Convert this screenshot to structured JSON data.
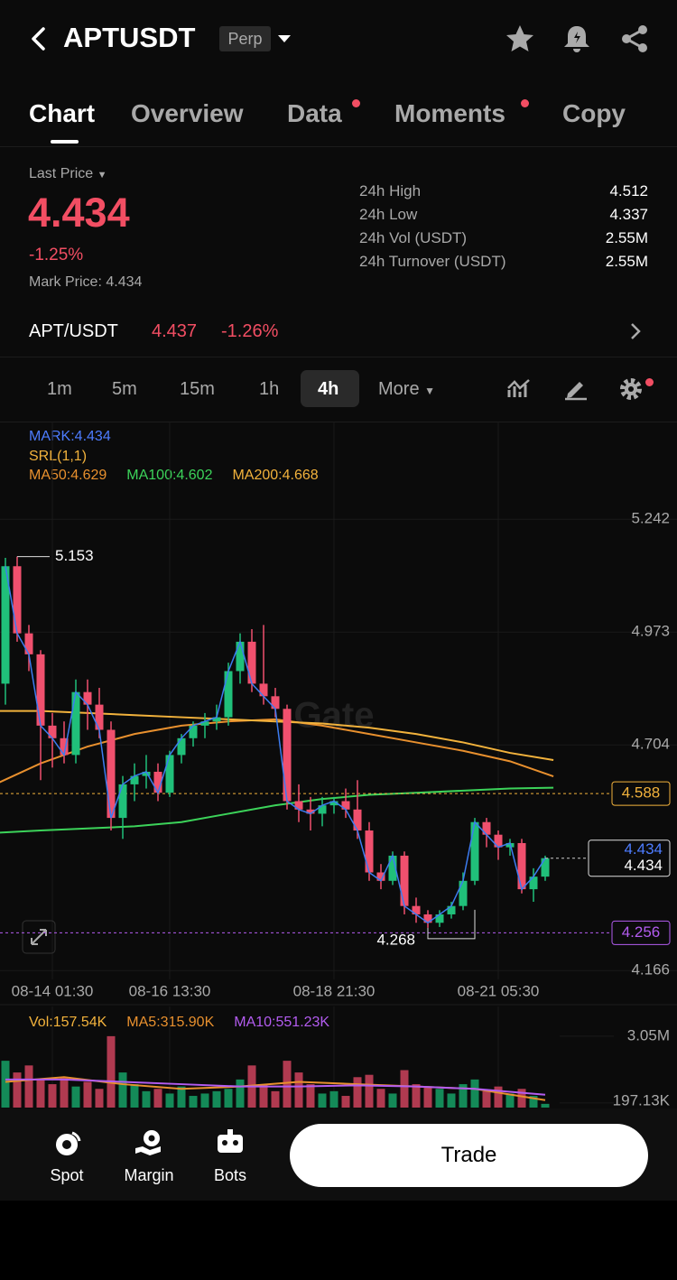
{
  "header": {
    "symbol": "APTUSDT",
    "badge": "Perp"
  },
  "tabs": [
    "Chart",
    "Overview",
    "Data",
    "Moments",
    "Copy"
  ],
  "price": {
    "last_label": "Last Price",
    "last": "4.434",
    "change": "-1.25%",
    "mark_label": "Mark Price:",
    "mark": "4.434"
  },
  "stats": [
    {
      "label": "24h High",
      "value": "4.512"
    },
    {
      "label": "24h Low",
      "value": "4.337"
    },
    {
      "label": "24h Vol (USDT)",
      "value": "2.55M"
    },
    {
      "label": "24h Turnover (USDT)",
      "value": "2.55M"
    }
  ],
  "pair": {
    "name": "APT/USDT",
    "price": "4.437",
    "change": "-1.26%"
  },
  "intervals": [
    "1m",
    "5m",
    "15m",
    "1h",
    "4h",
    "More"
  ],
  "chart": {
    "legend": {
      "mark": "MARK:4.434",
      "srl": "SRL(1,1)"
    },
    "watermark": "Gate",
    "ylim": [
      4.145,
      5.264
    ],
    "yticks": [
      5.242,
      4.973,
      4.704,
      4.166
    ],
    "times": [
      null,
      null,
      null,
      null,
      "08-14 01:30",
      null,
      null,
      null,
      null,
      null,
      null,
      null,
      null,
      null,
      "08-16 13:30",
      null,
      null,
      null,
      null,
      null,
      null,
      null,
      null,
      null,
      null,
      null,
      null,
      null,
      "08-18 21:30",
      null,
      null,
      null,
      null,
      null,
      null,
      null,
      null,
      null,
      null,
      null,
      null,
      null,
      "08-21 05:30",
      null,
      null,
      null,
      null
    ],
    "candles": [
      {
        "o": 4.85,
        "h": 5.15,
        "l": 4.8,
        "c": 5.13
      },
      {
        "o": 5.13,
        "h": 5.153,
        "l": 4.95,
        "c": 4.97
      },
      {
        "o": 4.97,
        "h": 4.99,
        "l": 4.88,
        "c": 4.92
      },
      {
        "o": 4.92,
        "h": 4.93,
        "l": 4.62,
        "c": 4.75
      },
      {
        "o": 4.75,
        "h": 4.78,
        "l": 4.65,
        "c": 4.72
      },
      {
        "o": 4.72,
        "h": 4.76,
        "l": 4.66,
        "c": 4.68
      },
      {
        "o": 4.68,
        "h": 4.86,
        "l": 4.66,
        "c": 4.83
      },
      {
        "o": 4.83,
        "h": 4.86,
        "l": 4.74,
        "c": 4.8
      },
      {
        "o": 4.8,
        "h": 4.84,
        "l": 4.72,
        "c": 4.74
      },
      {
        "o": 4.74,
        "h": 4.76,
        "l": 4.5,
        "c": 4.53
      },
      {
        "o": 4.53,
        "h": 4.63,
        "l": 4.48,
        "c": 4.61
      },
      {
        "o": 4.61,
        "h": 4.66,
        "l": 4.57,
        "c": 4.63
      },
      {
        "o": 4.63,
        "h": 4.68,
        "l": 4.6,
        "c": 4.64
      },
      {
        "o": 4.64,
        "h": 4.66,
        "l": 4.57,
        "c": 4.59
      },
      {
        "o": 4.59,
        "h": 4.69,
        "l": 4.58,
        "c": 4.68
      },
      {
        "o": 4.68,
        "h": 4.73,
        "l": 4.66,
        "c": 4.72
      },
      {
        "o": 4.72,
        "h": 4.76,
        "l": 4.7,
        "c": 4.75
      },
      {
        "o": 4.75,
        "h": 4.78,
        "l": 4.72,
        "c": 4.76
      },
      {
        "o": 4.76,
        "h": 4.8,
        "l": 4.74,
        "c": 4.77
      },
      {
        "o": 4.77,
        "h": 4.9,
        "l": 4.75,
        "c": 4.88
      },
      {
        "o": 4.88,
        "h": 4.97,
        "l": 4.85,
        "c": 4.95
      },
      {
        "o": 4.95,
        "h": 4.98,
        "l": 4.83,
        "c": 4.85
      },
      {
        "o": 4.85,
        "h": 4.99,
        "l": 4.8,
        "c": 4.82
      },
      {
        "o": 4.82,
        "h": 4.84,
        "l": 4.77,
        "c": 4.79
      },
      {
        "o": 4.79,
        "h": 4.8,
        "l": 4.55,
        "c": 4.57
      },
      {
        "o": 4.57,
        "h": 4.61,
        "l": 4.52,
        "c": 4.55
      },
      {
        "o": 4.55,
        "h": 4.58,
        "l": 4.5,
        "c": 4.54
      },
      {
        "o": 4.54,
        "h": 4.58,
        "l": 4.51,
        "c": 4.56
      },
      {
        "o": 4.56,
        "h": 4.58,
        "l": 4.54,
        "c": 4.57
      },
      {
        "o": 4.57,
        "h": 4.6,
        "l": 4.53,
        "c": 4.55
      },
      {
        "o": 4.55,
        "h": 4.62,
        "l": 4.48,
        "c": 4.5
      },
      {
        "o": 4.5,
        "h": 4.52,
        "l": 4.38,
        "c": 4.4
      },
      {
        "o": 4.4,
        "h": 4.42,
        "l": 4.36,
        "c": 4.38
      },
      {
        "o": 4.38,
        "h": 4.45,
        "l": 4.37,
        "c": 4.44
      },
      {
        "o": 4.44,
        "h": 4.45,
        "l": 4.3,
        "c": 4.32
      },
      {
        "o": 4.32,
        "h": 4.34,
        "l": 4.28,
        "c": 4.3
      },
      {
        "o": 4.3,
        "h": 4.31,
        "l": 4.268,
        "c": 4.28
      },
      {
        "o": 4.28,
        "h": 4.31,
        "l": 4.27,
        "c": 4.3
      },
      {
        "o": 4.3,
        "h": 4.33,
        "l": 4.29,
        "c": 4.32
      },
      {
        "o": 4.32,
        "h": 4.4,
        "l": 4.31,
        "c": 4.38
      },
      {
        "o": 4.38,
        "h": 4.53,
        "l": 4.37,
        "c": 4.52
      },
      {
        "o": 4.52,
        "h": 4.53,
        "l": 4.46,
        "c": 4.49
      },
      {
        "o": 4.49,
        "h": 4.5,
        "l": 4.43,
        "c": 4.46
      },
      {
        "o": 4.46,
        "h": 4.48,
        "l": 4.44,
        "c": 4.47
      },
      {
        "o": 4.47,
        "h": 4.48,
        "l": 4.35,
        "c": 4.36
      },
      {
        "o": 4.36,
        "h": 4.41,
        "l": 4.33,
        "c": 4.39
      },
      {
        "o": 4.39,
        "h": 4.44,
        "l": 4.38,
        "c": 4.434
      }
    ],
    "ma": [
      {
        "name": "MA50:4.629",
        "color": "#e8902e",
        "x": [
          -0.5,
          3,
          7,
          11,
          15,
          19,
          23,
          27,
          31,
          35,
          39,
          43,
          46.7
        ],
        "values": [
          4.615,
          4.66,
          4.7,
          4.73,
          4.75,
          4.76,
          4.765,
          4.75,
          4.73,
          4.71,
          4.69,
          4.665,
          4.629
        ]
      },
      {
        "name": "MA100:4.602",
        "color": "#3cd35a",
        "x": [
          -0.5,
          3,
          7,
          11,
          15,
          19,
          23,
          27,
          31,
          35,
          39,
          43,
          46.7
        ],
        "values": [
          4.495,
          4.5,
          4.505,
          4.51,
          4.52,
          4.54,
          4.56,
          4.575,
          4.585,
          4.59,
          4.595,
          4.6,
          4.602
        ]
      },
      {
        "name": "MA200:4.668",
        "color": "#f2b23c",
        "x": [
          -0.5,
          3,
          7,
          11,
          15,
          19,
          23,
          27,
          31,
          35,
          39,
          43,
          46.7
        ],
        "values": [
          4.785,
          4.785,
          4.78,
          4.775,
          4.77,
          4.765,
          4.76,
          4.755,
          4.745,
          4.73,
          4.71,
          4.685,
          4.668
        ]
      }
    ],
    "tags": [
      {
        "value": 4.588,
        "color": "#f2b23c"
      },
      {
        "value": 4.256,
        "color": "#b35cf0"
      }
    ],
    "last_tag": {
      "value": 4.434,
      "mark": 4.434,
      "price": 4.434
    },
    "volume": {
      "legend": [
        "Vol:157.54K",
        "MA5:315.90K",
        "MA10:551.23K"
      ],
      "ylim": [
        0,
        3.2
      ],
      "yticks": [
        {
          "value": 3.05,
          "label": "3.05M"
        },
        {
          "value": 0.19713,
          "label": "197.13K"
        }
      ],
      "values": [
        2.0,
        1.5,
        1.8,
        1.2,
        1.0,
        1.3,
        0.9,
        1.1,
        0.8,
        3.05,
        1.5,
        1.0,
        0.7,
        0.8,
        0.6,
        0.9,
        0.5,
        0.6,
        0.7,
        0.8,
        1.2,
        1.8,
        1.0,
        0.7,
        2.0,
        1.5,
        1.0,
        0.6,
        0.7,
        0.5,
        1.3,
        1.4,
        0.8,
        0.6,
        1.6,
        1.0,
        0.9,
        0.8,
        0.6,
        1.0,
        1.2,
        0.7,
        0.9,
        0.6,
        0.8,
        0.5,
        0.16
      ],
      "ma": [
        {
          "color": "#e8902e",
          "x": [
            0,
            5,
            10,
            15,
            20,
            25,
            30,
            35,
            40,
            46
          ],
          "values": [
            1.1,
            1.3,
            1.0,
            0.8,
            0.9,
            1.1,
            1.0,
            0.9,
            0.8,
            0.32
          ]
        },
        {
          "color": "#b35cf0",
          "x": [
            0,
            5,
            10,
            15,
            20,
            25,
            30,
            35,
            40,
            46
          ],
          "values": [
            1.2,
            1.2,
            1.1,
            1.0,
            0.9,
            0.9,
            0.95,
            0.9,
            0.8,
            0.55
          ]
        }
      ]
    }
  },
  "bottom_nav": [
    "Spot",
    "Margin",
    "Bots"
  ],
  "trade_button": "Trade"
}
